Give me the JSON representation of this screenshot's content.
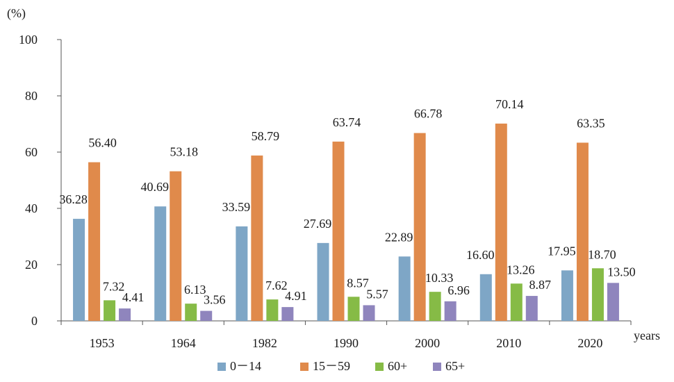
{
  "chart_data": {
    "type": "bar",
    "ylabel": "(%)",
    "xlabel": "years",
    "ylim": [
      0,
      100
    ],
    "yticks": [
      0,
      20,
      40,
      60,
      80,
      100
    ],
    "grid": false,
    "legend_position": "bottom",
    "categories": [
      "1953",
      "1964",
      "1982",
      "1990",
      "2000",
      "2010",
      "2020"
    ],
    "series": [
      {
        "name": "0－14",
        "color": "#7ea6c6",
        "values": [
          36.28,
          40.69,
          33.59,
          27.69,
          22.89,
          16.6,
          17.95
        ],
        "labels": [
          "36.28",
          "40.69",
          "33.59",
          "27.69",
          "22.89",
          "16.60",
          "17.95"
        ]
      },
      {
        "name": "15－59",
        "color": "#e08a4b",
        "values": [
          56.4,
          53.18,
          58.79,
          63.74,
          66.78,
          70.14,
          63.35
        ],
        "labels": [
          "56.40",
          "53.18",
          "58.79",
          "63.74",
          "66.78",
          "70.14",
          "63.35"
        ]
      },
      {
        "name": "60+",
        "color": "#86bb46",
        "values": [
          7.32,
          6.13,
          7.62,
          8.57,
          10.33,
          13.26,
          18.7
        ],
        "labels": [
          "7.32",
          "6.13",
          "7.62",
          "8.57",
          "10.33",
          "13.26",
          "18.70"
        ]
      },
      {
        "name": "65+",
        "color": "#8f85bd",
        "values": [
          4.41,
          3.56,
          4.91,
          5.57,
          6.96,
          8.87,
          13.5
        ],
        "labels": [
          "4.41",
          "3.56",
          "4.91",
          "5.57",
          "6.96",
          "8.87",
          "13.50"
        ]
      }
    ]
  }
}
